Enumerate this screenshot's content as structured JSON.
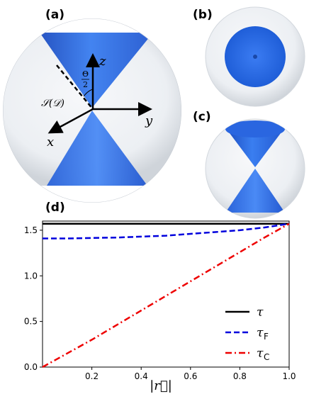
{
  "panels": {
    "a": "(a)",
    "b": "(b)",
    "c": "(c)",
    "d": "(d)"
  },
  "diagram_a": {
    "axis_z": "z",
    "axis_y": "y",
    "axis_x": "x",
    "angle_top": "Θ",
    "angle_bottom": "2",
    "set_label": "𝒮(𝒟)"
  },
  "colors": {
    "cone": "#2f6fe0",
    "cone_dark": "#1e4fb8",
    "sphere": "#e9edf2",
    "line_tau": "#000000",
    "line_tau_f": "#0000dd",
    "line_tau_c": "#ee0000"
  },
  "chart_data": {
    "type": "line",
    "xlabel": "|r⃗|",
    "xlim": [
      0.0,
      1.0
    ],
    "ylim": [
      0.0,
      1.6
    ],
    "xticks": [
      "0.2",
      "0.4",
      "0.6",
      "0.8",
      "1.0"
    ],
    "yticks": [
      "0.0",
      "0.5",
      "1.0",
      "1.5"
    ],
    "legend_position": "lower-right",
    "series": [
      {
        "name": "τ",
        "sub": "",
        "style": "solid",
        "x": [
          0.0,
          0.25,
          0.5,
          0.75,
          1.0
        ],
        "y": [
          1.571,
          1.571,
          1.571,
          1.571,
          1.571
        ]
      },
      {
        "name": "τ",
        "sub": "F",
        "style": "dashed",
        "x": [
          0.0,
          0.1,
          0.2,
          0.3,
          0.4,
          0.5,
          0.6,
          0.7,
          0.8,
          0.9,
          1.0
        ],
        "y": [
          1.41,
          1.41,
          1.415,
          1.42,
          1.43,
          1.44,
          1.46,
          1.48,
          1.5,
          1.53,
          1.571
        ]
      },
      {
        "name": "τ",
        "sub": "C",
        "style": "dashdot",
        "x": [
          0.0,
          0.1,
          0.2,
          0.3,
          0.4,
          0.5,
          0.6,
          0.7,
          0.8,
          0.9,
          1.0
        ],
        "y": [
          0.0,
          0.15,
          0.3,
          0.46,
          0.62,
          0.78,
          0.94,
          1.1,
          1.26,
          1.42,
          1.571
        ]
      }
    ]
  }
}
